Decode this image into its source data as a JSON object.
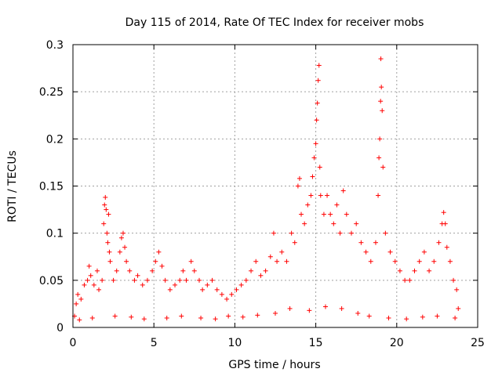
{
  "chart_data": {
    "type": "scatter",
    "title": "Day 115 of 2014, Rate Of TEC Index for receiver mobs",
    "xlabel": "GPS time / hours",
    "ylabel": "ROTI / TECUs",
    "xlim": [
      0,
      25
    ],
    "ylim": [
      0,
      0.3
    ],
    "x_ticks": [
      0,
      5,
      10,
      15,
      20,
      25
    ],
    "x_tick_labels": [
      "0",
      "5",
      "10",
      "15",
      "20",
      "25"
    ],
    "y_ticks": [
      0,
      0.05,
      0.1,
      0.15,
      0.2,
      0.25,
      0.3
    ],
    "y_tick_labels": [
      "0",
      "0.05",
      "0.1",
      "0.15",
      "0.2",
      "0.25",
      "0.3"
    ],
    "grid": true,
    "marker": "+",
    "color": "#ff0000",
    "series": [
      {
        "name": "ROTI",
        "points": [
          [
            0.1,
            0.012
          ],
          [
            0.2,
            0.025
          ],
          [
            0.3,
            0.035
          ],
          [
            0.5,
            0.03
          ],
          [
            0.7,
            0.045
          ],
          [
            0.9,
            0.05
          ],
          [
            1.0,
            0.065
          ],
          [
            1.1,
            0.055
          ],
          [
            1.3,
            0.045
          ],
          [
            1.5,
            0.06
          ],
          [
            1.6,
            0.04
          ],
          [
            1.8,
            0.05
          ],
          [
            1.9,
            0.11
          ],
          [
            1.95,
            0.13
          ],
          [
            2.0,
            0.138
          ],
          [
            2.05,
            0.125
          ],
          [
            2.1,
            0.1
          ],
          [
            2.15,
            0.09
          ],
          [
            2.2,
            0.12
          ],
          [
            2.25,
            0.08
          ],
          [
            2.3,
            0.07
          ],
          [
            2.5,
            0.05
          ],
          [
            2.7,
            0.06
          ],
          [
            2.9,
            0.08
          ],
          [
            3.0,
            0.095
          ],
          [
            3.1,
            0.1
          ],
          [
            3.2,
            0.085
          ],
          [
            3.3,
            0.07
          ],
          [
            3.5,
            0.06
          ],
          [
            3.8,
            0.05
          ],
          [
            4.0,
            0.055
          ],
          [
            4.3,
            0.045
          ],
          [
            4.6,
            0.05
          ],
          [
            4.9,
            0.06
          ],
          [
            5.1,
            0.07
          ],
          [
            5.3,
            0.08
          ],
          [
            5.5,
            0.065
          ],
          [
            5.7,
            0.05
          ],
          [
            6.0,
            0.04
          ],
          [
            6.3,
            0.045
          ],
          [
            6.6,
            0.05
          ],
          [
            6.8,
            0.06
          ],
          [
            7.0,
            0.05
          ],
          [
            7.3,
            0.07
          ],
          [
            7.5,
            0.06
          ],
          [
            7.8,
            0.05
          ],
          [
            8.0,
            0.04
          ],
          [
            8.3,
            0.045
          ],
          [
            8.6,
            0.05
          ],
          [
            8.9,
            0.04
          ],
          [
            9.2,
            0.035
          ],
          [
            9.5,
            0.03
          ],
          [
            9.8,
            0.035
          ],
          [
            10.1,
            0.04
          ],
          [
            10.4,
            0.045
          ],
          [
            10.7,
            0.05
          ],
          [
            11.0,
            0.06
          ],
          [
            11.3,
            0.07
          ],
          [
            11.6,
            0.055
          ],
          [
            11.9,
            0.06
          ],
          [
            12.2,
            0.075
          ],
          [
            12.4,
            0.1
          ],
          [
            12.6,
            0.07
          ],
          [
            12.9,
            0.08
          ],
          [
            13.2,
            0.07
          ],
          [
            13.5,
            0.1
          ],
          [
            13.7,
            0.09
          ],
          [
            13.9,
            0.15
          ],
          [
            14.0,
            0.158
          ],
          [
            14.1,
            0.12
          ],
          [
            14.3,
            0.11
          ],
          [
            14.5,
            0.13
          ],
          [
            14.7,
            0.14
          ],
          [
            14.8,
            0.16
          ],
          [
            14.9,
            0.18
          ],
          [
            15.0,
            0.195
          ],
          [
            15.05,
            0.22
          ],
          [
            15.1,
            0.238
          ],
          [
            15.15,
            0.262
          ],
          [
            15.2,
            0.278
          ],
          [
            15.25,
            0.17
          ],
          [
            15.3,
            0.14
          ],
          [
            15.5,
            0.12
          ],
          [
            15.7,
            0.14
          ],
          [
            15.9,
            0.12
          ],
          [
            16.1,
            0.11
          ],
          [
            16.3,
            0.13
          ],
          [
            16.5,
            0.1
          ],
          [
            16.7,
            0.145
          ],
          [
            16.9,
            0.12
          ],
          [
            17.2,
            0.1
          ],
          [
            17.5,
            0.11
          ],
          [
            17.8,
            0.09
          ],
          [
            18.1,
            0.08
          ],
          [
            18.4,
            0.07
          ],
          [
            18.7,
            0.09
          ],
          [
            18.85,
            0.14
          ],
          [
            18.9,
            0.18
          ],
          [
            18.95,
            0.2
          ],
          [
            19.0,
            0.24
          ],
          [
            19.02,
            0.285
          ],
          [
            19.05,
            0.255
          ],
          [
            19.1,
            0.23
          ],
          [
            19.15,
            0.17
          ],
          [
            19.3,
            0.1
          ],
          [
            19.6,
            0.08
          ],
          [
            19.9,
            0.07
          ],
          [
            20.2,
            0.06
          ],
          [
            20.5,
            0.05
          ],
          [
            20.8,
            0.05
          ],
          [
            21.1,
            0.06
          ],
          [
            21.4,
            0.07
          ],
          [
            21.7,
            0.08
          ],
          [
            22.0,
            0.06
          ],
          [
            22.3,
            0.07
          ],
          [
            22.6,
            0.09
          ],
          [
            22.8,
            0.11
          ],
          [
            22.9,
            0.122
          ],
          [
            23.0,
            0.11
          ],
          [
            23.1,
            0.085
          ],
          [
            23.3,
            0.07
          ],
          [
            23.5,
            0.05
          ],
          [
            23.7,
            0.04
          ],
          [
            23.8,
            0.02
          ],
          [
            0.4,
            0.008
          ],
          [
            1.2,
            0.01
          ],
          [
            2.6,
            0.012
          ],
          [
            3.6,
            0.011
          ],
          [
            4.4,
            0.009
          ],
          [
            5.8,
            0.01
          ],
          [
            6.7,
            0.012
          ],
          [
            7.9,
            0.01
          ],
          [
            8.8,
            0.009
          ],
          [
            9.6,
            0.012
          ],
          [
            10.5,
            0.011
          ],
          [
            11.4,
            0.013
          ],
          [
            12.5,
            0.015
          ],
          [
            13.4,
            0.02
          ],
          [
            14.6,
            0.018
          ],
          [
            15.6,
            0.022
          ],
          [
            16.6,
            0.02
          ],
          [
            17.6,
            0.015
          ],
          [
            18.3,
            0.012
          ],
          [
            19.5,
            0.01
          ],
          [
            20.6,
            0.009
          ],
          [
            21.6,
            0.011
          ],
          [
            22.5,
            0.012
          ],
          [
            23.6,
            0.01
          ]
        ]
      }
    ]
  }
}
